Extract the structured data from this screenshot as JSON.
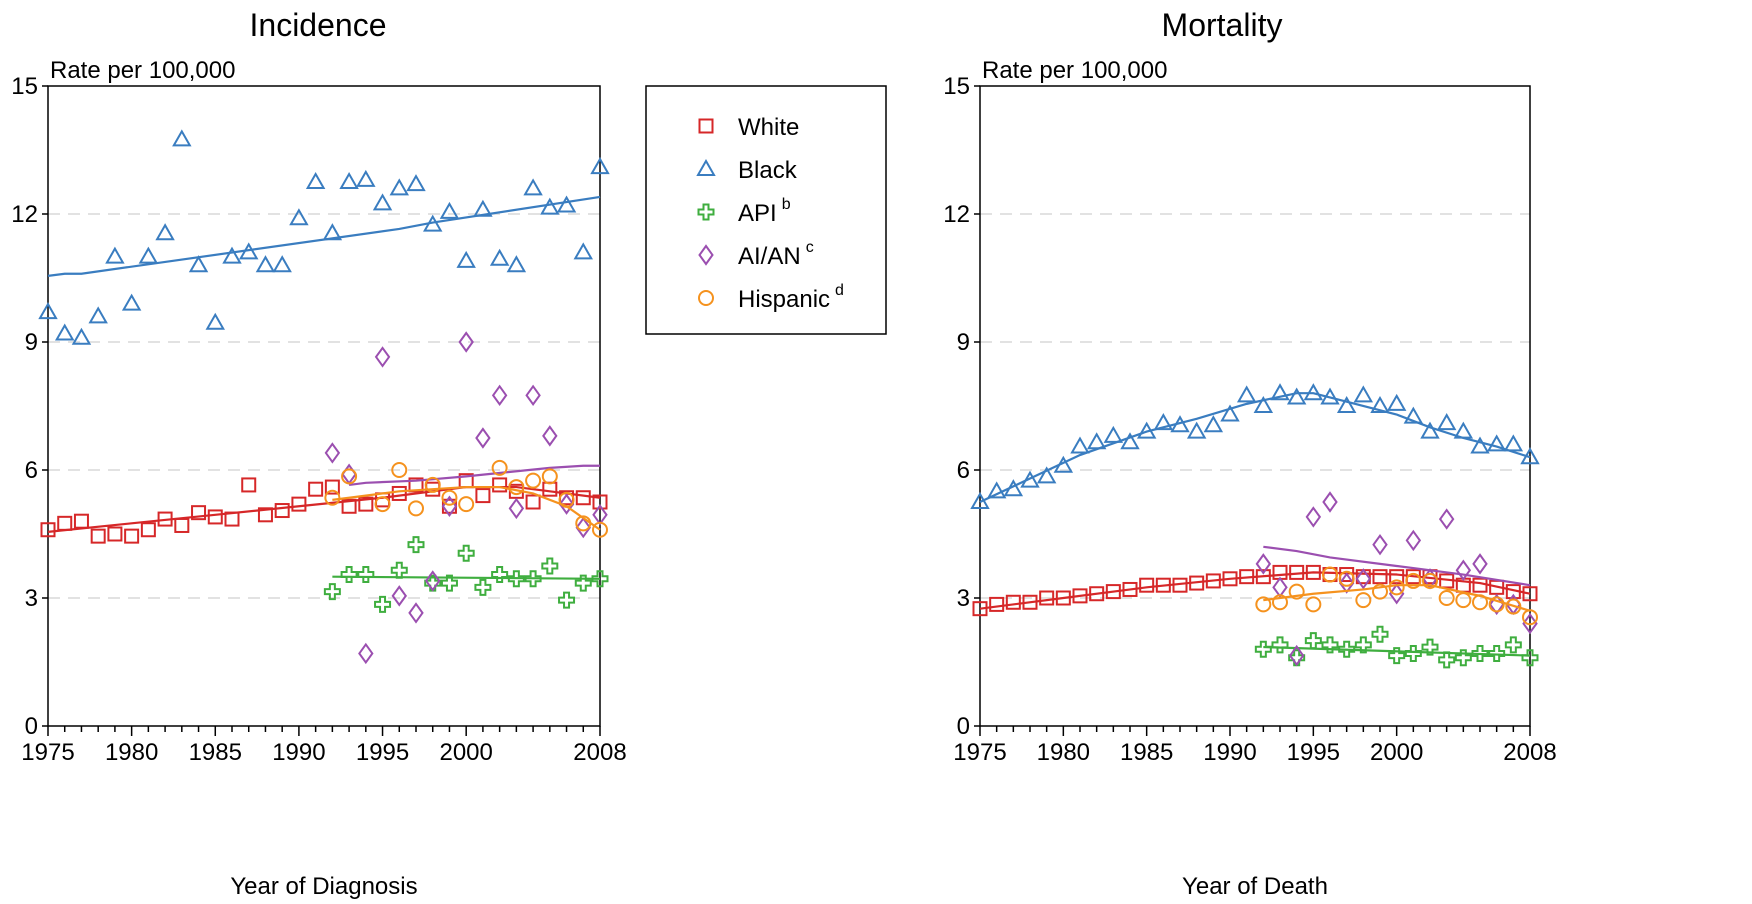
{
  "legend": {
    "entries": [
      {
        "series": "White",
        "label": "White",
        "sup": ""
      },
      {
        "series": "Black",
        "label": "Black",
        "sup": ""
      },
      {
        "series": "API",
        "label": "API",
        "sup": "b"
      },
      {
        "series": "AIAN",
        "label": "AI/AN",
        "sup": "c"
      },
      {
        "series": "Hispanic",
        "label": "Hispanic",
        "sup": "d"
      }
    ]
  },
  "colors": {
    "White": "#d62728",
    "Black": "#3a7dc0",
    "API": "#3fae3f",
    "AIAN": "#9b4fb0",
    "Hispanic": "#f5921e",
    "grid": "#d9d9d9"
  },
  "markers": {
    "White": "square",
    "Black": "triangle",
    "API": "plus",
    "AIAN": "diamond",
    "Hispanic": "circle"
  },
  "chart_data": [
    {
      "type": "scatter",
      "title": "Incidence",
      "ylabel": "Rate per 100,000",
      "xlabel": "Year of Diagnosis",
      "xlim": [
        1975,
        2008
      ],
      "ylim": [
        0,
        15
      ],
      "xticks": [
        1975,
        1980,
        1985,
        1990,
        1995,
        2000,
        2008
      ],
      "yticks": [
        0,
        3,
        6,
        9,
        12,
        15
      ],
      "grid": "horizontal-dashed",
      "series": [
        {
          "key": "White",
          "name": "White",
          "x": [
            1975,
            1976,
            1977,
            1978,
            1979,
            1980,
            1981,
            1982,
            1983,
            1984,
            1985,
            1986,
            1987,
            1988,
            1989,
            1990,
            1991,
            1992,
            1993,
            1994,
            1995,
            1996,
            1997,
            1998,
            1999,
            2000,
            2001,
            2002,
            2003,
            2004,
            2005,
            2006,
            2007,
            2008
          ],
          "y": [
            4.6,
            4.75,
            4.8,
            4.45,
            4.5,
            4.45,
            4.6,
            4.85,
            4.7,
            5.0,
            4.9,
            4.85,
            5.65,
            4.95,
            5.05,
            5.2,
            5.55,
            5.6,
            5.15,
            5.2,
            5.3,
            5.45,
            5.65,
            5.55,
            5.15,
            5.75,
            5.4,
            5.65,
            5.5,
            5.25,
            5.55,
            5.35,
            5.35,
            5.25
          ],
          "trend": {
            "x": [
              1975,
              1980,
              1985,
              1990,
              1995,
              2000,
              2003,
              2005,
              2008
            ],
            "y": [
              4.55,
              4.75,
              4.95,
              5.15,
              5.35,
              5.6,
              5.6,
              5.5,
              5.35
            ]
          }
        },
        {
          "key": "Black",
          "name": "Black",
          "x": [
            1975,
            1976,
            1977,
            1978,
            1979,
            1980,
            1981,
            1982,
            1983,
            1984,
            1985,
            1986,
            1987,
            1988,
            1989,
            1990,
            1991,
            1992,
            1993,
            1994,
            1995,
            1996,
            1997,
            1998,
            1999,
            2000,
            2001,
            2002,
            2003,
            2004,
            2005,
            2006,
            2007,
            2008
          ],
          "y": [
            9.7,
            9.2,
            9.1,
            9.6,
            11.0,
            9.9,
            11.0,
            11.55,
            13.75,
            10.8,
            9.45,
            11.0,
            11.1,
            10.8,
            10.8,
            11.9,
            12.75,
            11.55,
            12.75,
            12.8,
            12.25,
            12.6,
            12.7,
            11.75,
            12.05,
            10.9,
            12.1,
            10.95,
            10.8,
            12.6,
            12.15,
            12.2,
            11.1,
            13.1
          ],
          "trend": {
            "x": [
              1975,
              1976,
              1977,
              1996,
              1998,
              2008
            ],
            "y": [
              10.55,
              10.6,
              10.6,
              11.65,
              11.8,
              12.4
            ]
          }
        },
        {
          "key": "API",
          "name": "API",
          "x": [
            1992,
            1993,
            1994,
            1995,
            1996,
            1997,
            1998,
            1999,
            2000,
            2001,
            2002,
            2003,
            2004,
            2005,
            2006,
            2007,
            2008
          ],
          "y": [
            3.15,
            3.55,
            3.55,
            2.85,
            3.65,
            4.25,
            3.35,
            3.35,
            4.05,
            3.25,
            3.55,
            3.45,
            3.45,
            3.75,
            2.95,
            3.35,
            3.45
          ],
          "trend": {
            "x": [
              1992,
              2008
            ],
            "y": [
              3.5,
              3.45
            ]
          }
        },
        {
          "key": "AIAN",
          "name": "AI/AN",
          "x": [
            1992,
            1993,
            1994,
            1995,
            1996,
            1997,
            1998,
            1999,
            2000,
            2001,
            2002,
            2003,
            2004,
            2005,
            2006,
            2007,
            2008
          ],
          "y": [
            6.4,
            5.9,
            1.7,
            8.65,
            3.05,
            2.65,
            3.4,
            5.15,
            9.0,
            6.75,
            7.75,
            5.1,
            7.75,
            6.8,
            5.2,
            4.65,
            4.95
          ],
          "trend": {
            "x": [
              1993,
              1994,
              1997,
              2000,
              2005,
              2007,
              2008
            ],
            "y": [
              5.65,
              5.7,
              5.75,
              5.85,
              6.05,
              6.1,
              6.1
            ]
          }
        },
        {
          "key": "Hispanic",
          "name": "Hispanic",
          "x": [
            1992,
            1993,
            1995,
            1996,
            1997,
            1998,
            1999,
            2000,
            2002,
            2003,
            2004,
            2005,
            2006,
            2007,
            2008
          ],
          "y": [
            5.35,
            5.85,
            5.2,
            6.0,
            5.1,
            5.65,
            5.35,
            5.2,
            6.05,
            5.6,
            5.75,
            5.85,
            5.3,
            4.75,
            4.6
          ],
          "trend": {
            "x": [
              1992,
              1994,
              1996,
              1998,
              2000,
              2002,
              2004,
              2006,
              2008
            ],
            "y": [
              5.3,
              5.4,
              5.5,
              5.55,
              5.6,
              5.6,
              5.45,
              5.15,
              4.6
            ]
          }
        }
      ]
    },
    {
      "type": "scatter",
      "title": "Mortality",
      "ylabel": "Rate per 100,000",
      "xlabel": "Year of Death",
      "xlim": [
        1975,
        2008
      ],
      "ylim": [
        0,
        15
      ],
      "xticks": [
        1975,
        1980,
        1985,
        1990,
        1995,
        2000,
        2008
      ],
      "yticks": [
        0,
        3,
        6,
        9,
        12,
        15
      ],
      "grid": "horizontal-dashed",
      "series": [
        {
          "key": "White",
          "name": "White",
          "x": [
            1975,
            1976,
            1977,
            1978,
            1979,
            1980,
            1981,
            1982,
            1983,
            1984,
            1985,
            1986,
            1987,
            1988,
            1989,
            1990,
            1991,
            1992,
            1993,
            1994,
            1995,
            1996,
            1997,
            1998,
            1999,
            2000,
            2001,
            2002,
            2003,
            2004,
            2005,
            2006,
            2007,
            2008
          ],
          "y": [
            2.75,
            2.85,
            2.9,
            2.9,
            3.0,
            3.0,
            3.05,
            3.1,
            3.15,
            3.2,
            3.3,
            3.3,
            3.3,
            3.35,
            3.4,
            3.45,
            3.5,
            3.5,
            3.6,
            3.6,
            3.6,
            3.55,
            3.55,
            3.5,
            3.5,
            3.5,
            3.5,
            3.5,
            3.4,
            3.3,
            3.3,
            3.25,
            3.15,
            3.1
          ],
          "trend": {
            "x": [
              1975,
              1980,
              1985,
              1990,
              1995,
              2000,
              2005,
              2008
            ],
            "y": [
              2.75,
              3.0,
              3.25,
              3.45,
              3.6,
              3.55,
              3.35,
              3.1
            ]
          }
        },
        {
          "key": "Black",
          "name": "Black",
          "x": [
            1975,
            1976,
            1977,
            1978,
            1979,
            1980,
            1981,
            1982,
            1983,
            1984,
            1985,
            1986,
            1987,
            1988,
            1989,
            1990,
            1991,
            1992,
            1993,
            1994,
            1995,
            1996,
            1997,
            1998,
            1999,
            2000,
            2001,
            2002,
            2003,
            2004,
            2005,
            2006,
            2007,
            2008
          ],
          "y": [
            5.25,
            5.5,
            5.55,
            5.75,
            5.85,
            6.1,
            6.55,
            6.65,
            6.8,
            6.65,
            6.9,
            7.1,
            7.05,
            6.9,
            7.05,
            7.3,
            7.75,
            7.5,
            7.8,
            7.7,
            7.8,
            7.7,
            7.5,
            7.75,
            7.5,
            7.55,
            7.25,
            6.9,
            7.1,
            6.9,
            6.55,
            6.6,
            6.6,
            6.3
          ],
          "trend": {
            "x": [
              1975,
              1978,
              1981,
              1985,
              1988,
              1991,
              1994,
              1995,
              1997,
              2000,
              2002,
              2004,
              2006,
              2008
            ],
            "y": [
              5.25,
              5.8,
              6.35,
              6.9,
              7.2,
              7.55,
              7.8,
              7.8,
              7.6,
              7.3,
              7.0,
              6.75,
              6.55,
              6.3
            ]
          }
        },
        {
          "key": "API",
          "name": "API",
          "x": [
            1992,
            1993,
            1994,
            1995,
            1996,
            1997,
            1998,
            1999,
            2000,
            2001,
            2002,
            2003,
            2004,
            2005,
            2006,
            2007,
            2008
          ],
          "y": [
            1.8,
            1.9,
            1.6,
            2.0,
            1.9,
            1.8,
            1.9,
            2.15,
            1.65,
            1.7,
            1.85,
            1.55,
            1.6,
            1.7,
            1.7,
            1.9,
            1.6
          ],
          "trend": {
            "x": [
              1992,
              2008
            ],
            "y": [
              1.85,
              1.65
            ]
          }
        },
        {
          "key": "AIAN",
          "name": "AI/AN",
          "x": [
            1992,
            1993,
            1994,
            1995,
            1996,
            1997,
            1998,
            1999,
            2000,
            2001,
            2002,
            2003,
            2004,
            2005,
            2006,
            2007,
            2008
          ],
          "y": [
            3.8,
            3.25,
            1.65,
            4.9,
            5.25,
            3.35,
            3.45,
            4.25,
            3.1,
            4.35,
            3.45,
            4.85,
            3.65,
            3.8,
            2.85,
            2.85,
            2.4
          ],
          "trend": {
            "x": [
              1992,
              1994,
              1996,
              2000,
              2004,
              2008
            ],
            "y": [
              4.2,
              4.1,
              3.95,
              3.75,
              3.55,
              3.3
            ]
          }
        },
        {
          "key": "Hispanic",
          "name": "Hispanic",
          "x": [
            1992,
            1993,
            1994,
            1995,
            1996,
            1997,
            1998,
            1999,
            2000,
            2001,
            2002,
            2003,
            2004,
            2005,
            2006,
            2007,
            2008
          ],
          "y": [
            2.85,
            2.9,
            3.15,
            2.85,
            3.55,
            3.45,
            2.95,
            3.15,
            3.25,
            3.4,
            3.4,
            3.0,
            2.95,
            2.9,
            2.85,
            2.8,
            2.55
          ],
          "trend": {
            "x": [
              1992,
              1995,
              1998,
              2000,
              2002,
              2005,
              2008
            ],
            "y": [
              2.95,
              3.1,
              3.2,
              3.3,
              3.3,
              3.05,
              2.7
            ]
          }
        }
      ]
    }
  ]
}
